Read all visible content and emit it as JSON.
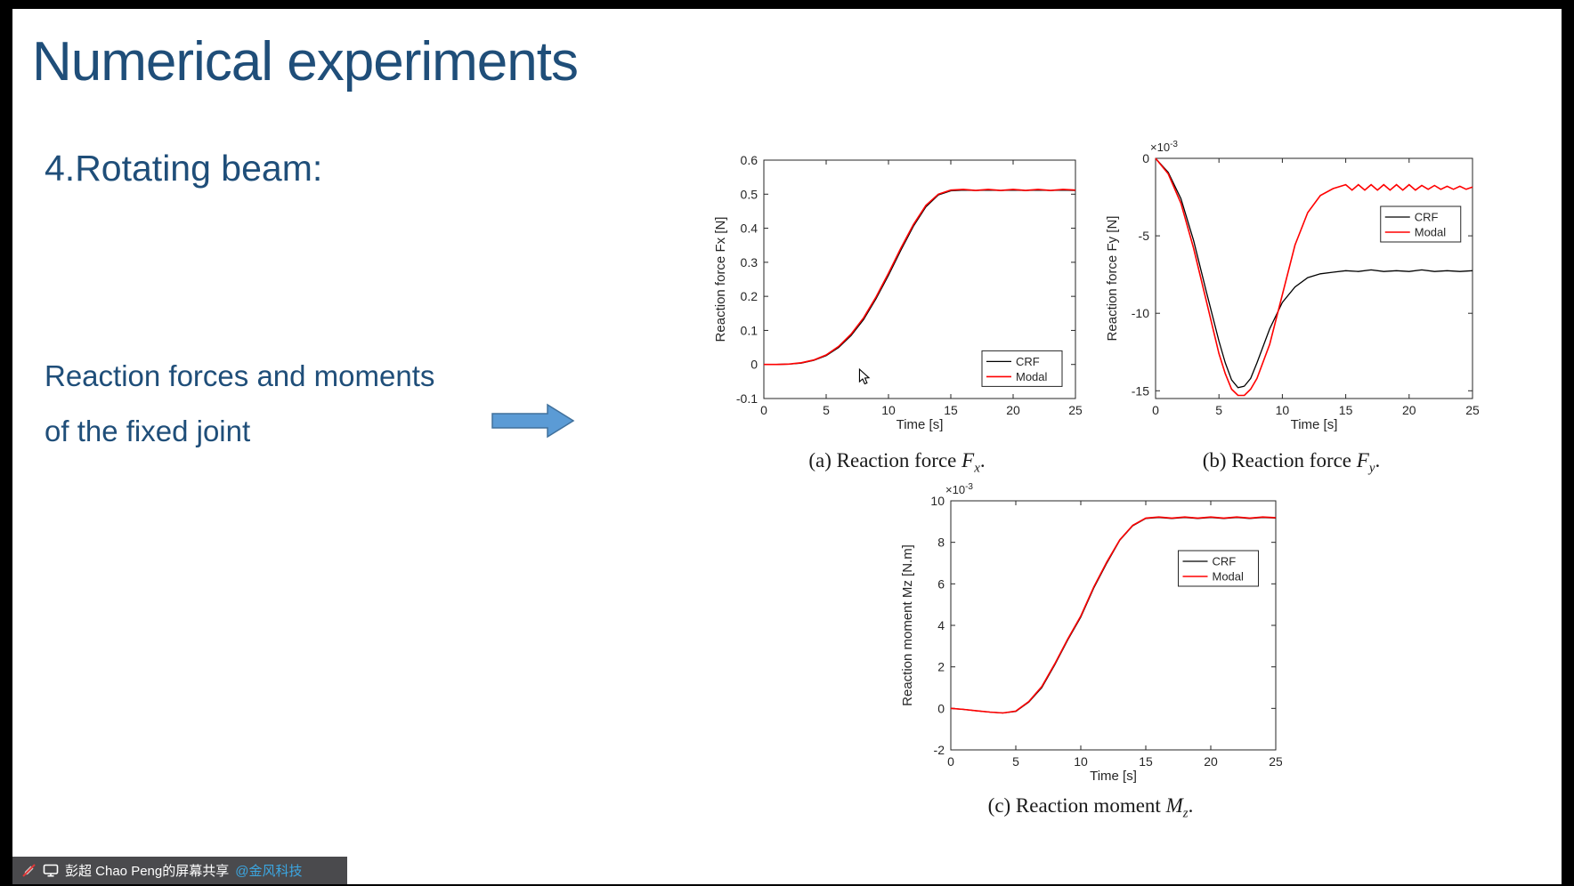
{
  "slide": {
    "title": "Numerical experiments",
    "subtitle": "4.Rotating beam:",
    "body_line1": "Reaction forces and moments",
    "body_line2": "of the fixed joint",
    "accent_color": "#1F4E79",
    "arrow_fill": "#5B9BD5",
    "arrow_stroke": "#41719C"
  },
  "share_bar": {
    "text": "彭超 Chao Peng的屏幕共享",
    "mention": "@金风科技",
    "mention_color": "#3BA7E2",
    "bar_color": "#4a4a4d",
    "icons": [
      "annotation-disabled-icon",
      "screen-share-icon"
    ]
  },
  "chart_data": [
    {
      "id": "fx",
      "type": "line",
      "title": "",
      "xlabel": "Time [s]",
      "ylabel": "Reaction force Fx [N]",
      "xlim": [
        0,
        25
      ],
      "ylim": [
        -0.1,
        0.6
      ],
      "xticks": [
        0,
        5,
        10,
        15,
        20,
        25
      ],
      "yticks": [
        -0.1,
        0,
        0.1,
        0.2,
        0.3,
        0.4,
        0.5,
        0.6
      ],
      "grid": false,
      "exponent": "",
      "legend_pos": "bottom-right",
      "legend_xy": [
        0.7,
        0.8
      ],
      "caption": {
        "pre": "(a) Reaction force ",
        "var": "F",
        "sub": "x",
        "post": "."
      },
      "series": [
        {
          "name": "CRF",
          "color": "#000000",
          "width": 1.3,
          "x": [
            0,
            1,
            2,
            3,
            4,
            5,
            6,
            7,
            8,
            9,
            10,
            11,
            12,
            13,
            14,
            15,
            16,
            17,
            18,
            19,
            20,
            21,
            22,
            23,
            24,
            25
          ],
          "y": [
            0,
            0,
            0.001,
            0.004,
            0.012,
            0.026,
            0.05,
            0.085,
            0.132,
            0.193,
            0.262,
            0.336,
            0.406,
            0.463,
            0.498,
            0.51,
            0.512,
            0.511,
            0.512,
            0.511,
            0.512,
            0.511,
            0.512,
            0.511,
            0.512,
            0.511
          ]
        },
        {
          "name": "Modal",
          "color": "#FF0000",
          "width": 1.6,
          "x": [
            0,
            1,
            2,
            3,
            4,
            5,
            6,
            7,
            8,
            9,
            10,
            11,
            12,
            13,
            14,
            15,
            16,
            17,
            18,
            19,
            20,
            21,
            22,
            23,
            24,
            25
          ],
          "y": [
            0,
            0,
            0.001,
            0.005,
            0.013,
            0.028,
            0.053,
            0.089,
            0.137,
            0.198,
            0.268,
            0.342,
            0.411,
            0.467,
            0.5,
            0.512,
            0.514,
            0.511,
            0.514,
            0.511,
            0.514,
            0.511,
            0.514,
            0.511,
            0.514,
            0.512
          ]
        }
      ]
    },
    {
      "id": "fy",
      "type": "line",
      "title": "",
      "xlabel": "Time [s]",
      "ylabel": "Reaction force Fy [N]",
      "xlim": [
        0,
        25
      ],
      "ylim": [
        -15.5,
        0
      ],
      "xticks": [
        0,
        5,
        10,
        15,
        20,
        25
      ],
      "yticks": [
        0,
        -5,
        -10,
        -15
      ],
      "grid": false,
      "exponent": "-3",
      "legend_pos": "top-right",
      "legend_xy": [
        0.71,
        0.2
      ],
      "caption": {
        "pre": "(b) Reaction force ",
        "var": "F",
        "sub": "y",
        "post": "."
      },
      "series": [
        {
          "name": "CRF",
          "color": "#000000",
          "width": 1.3,
          "x": [
            0,
            1,
            2,
            3,
            4,
            5,
            5.5,
            6,
            6.5,
            7,
            7.5,
            8,
            9,
            10,
            11,
            12,
            13,
            14,
            15,
            16,
            17,
            18,
            19,
            20,
            21,
            22,
            23,
            24,
            25
          ],
          "y": [
            0,
            -0.9,
            -2.6,
            -5.3,
            -8.6,
            -11.8,
            -13.2,
            -14.3,
            -14.8,
            -14.7,
            -14.2,
            -13.2,
            -11.0,
            -9.3,
            -8.3,
            -7.7,
            -7.45,
            -7.35,
            -7.25,
            -7.3,
            -7.2,
            -7.3,
            -7.25,
            -7.3,
            -7.2,
            -7.3,
            -7.25,
            -7.3,
            -7.25
          ]
        },
        {
          "name": "Modal",
          "color": "#FF0000",
          "width": 1.6,
          "x": [
            0,
            1,
            2,
            3,
            4,
            5,
            5.5,
            6,
            6.5,
            7,
            7.5,
            8,
            9,
            10,
            11,
            12,
            13,
            14,
            15,
            15.5,
            16,
            16.5,
            17,
            17.5,
            18,
            18.5,
            19,
            19.5,
            20,
            20.5,
            21,
            21.5,
            22,
            22.5,
            23,
            23.5,
            24,
            24.5,
            25
          ],
          "y": [
            0,
            -1.0,
            -2.9,
            -5.8,
            -9.2,
            -12.6,
            -13.9,
            -14.9,
            -15.3,
            -15.3,
            -14.9,
            -14.2,
            -12.0,
            -8.8,
            -5.6,
            -3.5,
            -2.4,
            -1.95,
            -1.7,
            -2.05,
            -1.7,
            -2.05,
            -1.7,
            -2.05,
            -1.7,
            -2.05,
            -1.7,
            -2.05,
            -1.7,
            -2.05,
            -1.75,
            -2.0,
            -1.75,
            -2.0,
            -1.8,
            -2.0,
            -1.8,
            -2.0,
            -1.85
          ]
        }
      ]
    },
    {
      "id": "mz",
      "type": "line",
      "title": "",
      "xlabel": "Time [s]",
      "ylabel": "Reaction moment Mz [N.m]",
      "xlim": [
        0,
        25
      ],
      "ylim": [
        -2,
        10
      ],
      "xticks": [
        0,
        5,
        10,
        15,
        20,
        25
      ],
      "yticks": [
        -2,
        0,
        2,
        4,
        6,
        8,
        10
      ],
      "grid": false,
      "exponent": "-3",
      "legend_pos": "top-right",
      "legend_xy": [
        0.7,
        0.2
      ],
      "caption": {
        "pre": "(c) Reaction moment ",
        "var": "M",
        "sub": "z",
        "post": "."
      },
      "series": [
        {
          "name": "CRF",
          "color": "#000000",
          "width": 1.3,
          "x": [
            0,
            1,
            2,
            3,
            4,
            5,
            6,
            7,
            8,
            9,
            10,
            11,
            12,
            13,
            14,
            15,
            16,
            17,
            18,
            19,
            20,
            21,
            22,
            23,
            24,
            25
          ],
          "y": [
            0,
            -0.05,
            -0.12,
            -0.18,
            -0.22,
            -0.15,
            0.3,
            1.0,
            2.1,
            3.3,
            4.4,
            5.8,
            7.0,
            8.1,
            8.8,
            9.15,
            9.2,
            9.15,
            9.2,
            9.15,
            9.2,
            9.15,
            9.2,
            9.15,
            9.2,
            9.17
          ]
        },
        {
          "name": "Modal",
          "color": "#FF0000",
          "width": 1.6,
          "x": [
            0,
            1,
            2,
            3,
            4,
            5,
            6,
            7,
            8,
            9,
            10,
            11,
            12,
            13,
            14,
            15,
            16,
            17,
            18,
            19,
            20,
            21,
            22,
            23,
            24,
            25
          ],
          "y": [
            0,
            -0.05,
            -0.12,
            -0.18,
            -0.22,
            -0.13,
            0.33,
            1.05,
            2.15,
            3.35,
            4.45,
            5.85,
            7.05,
            8.12,
            8.82,
            9.17,
            9.22,
            9.17,
            9.22,
            9.17,
            9.22,
            9.17,
            9.22,
            9.17,
            9.22,
            9.19
          ]
        }
      ]
    }
  ]
}
